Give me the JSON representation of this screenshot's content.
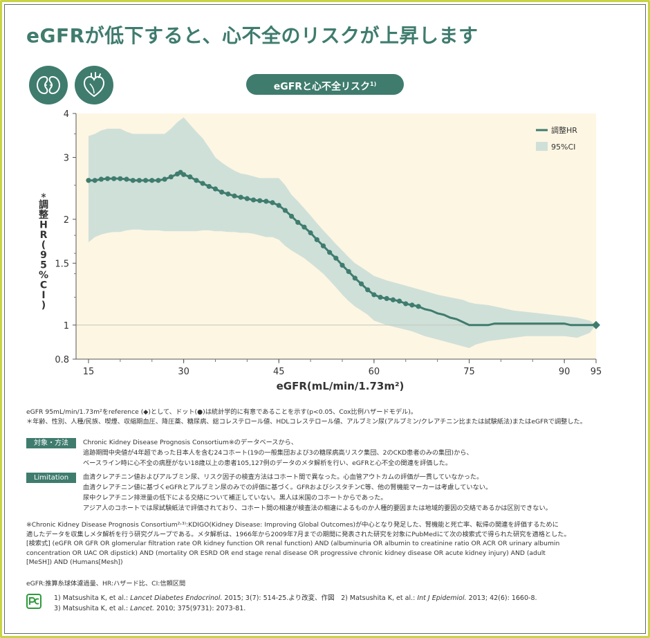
{
  "title": "eGFRが低下すると、心不全のリスクが上昇します",
  "pill": {
    "text": "eGFRと心不全リスク",
    "sup": "1)"
  },
  "icons": [
    "kidney-icon",
    "heart-icon"
  ],
  "colors": {
    "accent": "#3f7c6e",
    "ci_fill": "#cfe0d9",
    "plot_bg": "#fdf6e3",
    "frame": "#c8d445"
  },
  "chart_data": {
    "type": "line",
    "xlabel": "eGFR(mL/min/1.73m²)",
    "ylabel": "＊調整HR(95%CI)",
    "x_ticks": [
      15,
      30,
      45,
      60,
      75,
      90,
      95
    ],
    "y_ticks": [
      0.8,
      1,
      1.5,
      2,
      3,
      4
    ],
    "y_tick_labels": [
      "0.8",
      "1",
      "1.5",
      "2",
      "3",
      "4"
    ],
    "xlim": [
      15,
      95
    ],
    "ylim": [
      0.8,
      4
    ],
    "y_scale": "log",
    "legend": {
      "placement": "top-right",
      "entries": [
        "調整HR",
        "95%CI"
      ]
    },
    "reference": {
      "x": 95,
      "y": 1
    },
    "series": [
      {
        "name": "調整HR",
        "x": [
          15,
          16,
          17,
          18,
          19,
          20,
          21,
          22,
          23,
          24,
          25,
          26,
          27,
          28,
          29,
          29.5,
          30,
          31,
          32,
          33,
          34,
          35,
          36,
          37,
          38,
          39,
          40,
          41,
          42,
          43,
          44,
          45,
          46,
          47,
          48,
          49,
          50,
          51,
          52,
          53,
          54,
          55,
          56,
          57,
          58,
          59,
          60,
          61,
          62,
          63,
          64,
          65,
          66,
          67,
          68,
          69,
          70,
          71,
          72,
          73,
          74,
          75,
          76,
          77,
          78,
          79,
          80,
          81,
          82,
          83,
          84,
          85,
          86,
          87,
          88,
          89,
          90,
          91,
          92,
          93,
          94,
          95
        ],
        "y": [
          2.58,
          2.58,
          2.6,
          2.61,
          2.61,
          2.61,
          2.6,
          2.58,
          2.58,
          2.58,
          2.58,
          2.58,
          2.6,
          2.64,
          2.69,
          2.72,
          2.68,
          2.64,
          2.58,
          2.53,
          2.48,
          2.44,
          2.39,
          2.36,
          2.33,
          2.31,
          2.29,
          2.27,
          2.26,
          2.25,
          2.23,
          2.19,
          2.12,
          2.04,
          1.96,
          1.9,
          1.83,
          1.75,
          1.68,
          1.61,
          1.55,
          1.48,
          1.42,
          1.36,
          1.31,
          1.26,
          1.22,
          1.2,
          1.19,
          1.18,
          1.17,
          1.15,
          1.14,
          1.13,
          1.11,
          1.1,
          1.08,
          1.07,
          1.05,
          1.04,
          1.02,
          1.0,
          1.0,
          1.0,
          1.0,
          1.01,
          1.01,
          1.01,
          1.01,
          1.01,
          1.01,
          1.01,
          1.01,
          1.01,
          1.01,
          1.01,
          1.01,
          1.0,
          1.0,
          1.0,
          1.0,
          1.0
        ],
        "dots": [
          15,
          16,
          17,
          18,
          19,
          20,
          21,
          22,
          23,
          24,
          25,
          26,
          27,
          28,
          29,
          29.5,
          30,
          31,
          32,
          33,
          34,
          35,
          36,
          37,
          38,
          39,
          40,
          41,
          42,
          43,
          44,
          45,
          46,
          47,
          48,
          49,
          50,
          51,
          52,
          53,
          54,
          55,
          56,
          57,
          58,
          59,
          60,
          61,
          62,
          63,
          64,
          65,
          66,
          67
        ]
      },
      {
        "name": "95%CI",
        "x": [
          15,
          16,
          17,
          18,
          19,
          20,
          21,
          22,
          23,
          24,
          25,
          26,
          27,
          28,
          29,
          30,
          31,
          32,
          33,
          34,
          35,
          36,
          37,
          38,
          39,
          40,
          41,
          42,
          43,
          44,
          45,
          46,
          47,
          48,
          49,
          50,
          51,
          52,
          53,
          54,
          55,
          56,
          57,
          58,
          59,
          60,
          62,
          64,
          66,
          68,
          70,
          72,
          74,
          75,
          76,
          78,
          80,
          82,
          84,
          86,
          88,
          90,
          92,
          94,
          95
        ],
        "upper": [
          3.45,
          3.5,
          3.58,
          3.62,
          3.62,
          3.62,
          3.55,
          3.5,
          3.5,
          3.5,
          3.5,
          3.5,
          3.5,
          3.62,
          3.78,
          3.9,
          3.72,
          3.55,
          3.4,
          3.2,
          3.0,
          2.9,
          2.82,
          2.75,
          2.7,
          2.68,
          2.65,
          2.62,
          2.62,
          2.62,
          2.62,
          2.5,
          2.35,
          2.25,
          2.15,
          2.05,
          1.95,
          1.86,
          1.78,
          1.7,
          1.63,
          1.56,
          1.5,
          1.46,
          1.42,
          1.38,
          1.34,
          1.31,
          1.28,
          1.25,
          1.22,
          1.2,
          1.18,
          1.16,
          1.15,
          1.14,
          1.12,
          1.1,
          1.09,
          1.08,
          1.07,
          1.06,
          1.05,
          1.03,
          1.0
        ],
        "lower": [
          1.72,
          1.78,
          1.81,
          1.83,
          1.84,
          1.84,
          1.86,
          1.87,
          1.87,
          1.86,
          1.86,
          1.86,
          1.85,
          1.85,
          1.85,
          1.85,
          1.85,
          1.85,
          1.86,
          1.86,
          1.85,
          1.85,
          1.84,
          1.84,
          1.83,
          1.83,
          1.82,
          1.8,
          1.78,
          1.78,
          1.75,
          1.68,
          1.63,
          1.59,
          1.55,
          1.5,
          1.45,
          1.4,
          1.34,
          1.28,
          1.22,
          1.17,
          1.13,
          1.1,
          1.07,
          1.03,
          1.0,
          0.98,
          0.96,
          0.93,
          0.91,
          0.89,
          0.87,
          0.86,
          0.88,
          0.9,
          0.91,
          0.92,
          0.93,
          0.93,
          0.93,
          0.93,
          0.92,
          0.95,
          1.0
        ]
      }
    ]
  },
  "notes": {
    "line1": "eGFR 95mL/min/1.73m²をreference (◆)として、ドット(●)は統計学的に有意であることを示す(p<0.05、Cox比例ハザードモデル)。",
    "line2": "＊年齢、性別、人種/民族、喫煙、収縮期血圧、降圧薬、糖尿病、総コレステロール値、HDLコレステロール値、アルブミン尿(アルブミン/クレアチニン比または試験紙法)またはeGFRで調整した。"
  },
  "methods": {
    "label": "対象・方法",
    "lines": [
      "Chronic Kidney Disease Prognosis Consortium※のデータベースから、",
      "追跡期間中央値が4年超であった日本人を含む24コホート(19の一般集団および3の糖尿病高リスク集団、2のCKD患者のみの集団)から、",
      "ベースライン時に心不全の病歴がない18歳以上の患者105,127例のデータのメタ解析を行い、eGFRと心不全の関連を評価した。"
    ]
  },
  "limitation": {
    "label": "Limitation",
    "lines": [
      "血清クレアチニン値およびアルブミン尿、リスク因子の検査方法はコホート間で異なった。心血管アウトカムの評価が一貫していなかった。",
      "血清クレアチニン値に基づくeGFRとアルブミン尿のみでの評価に基づく。GFRおよびシスタチンC等、他の腎機能マーカーは考慮していない。",
      "尿中クレアチニン排泄量の低下による交絡について補正していない。黒人は米国のコホートからであった。",
      "アジア人のコホートでは尿試験紙法で評価されており、コホート間の相違が検査法の相違によるものか人種的要因または地域的要因の交絡であるかは区別できない。"
    ]
  },
  "consortium": {
    "lines": [
      "※Chronic Kidney Disease Prognosis Consortium²˒³⁾:KDIGO(Kidney Disease: Improving Global Outcomes)が中心となり発足した、腎機能と死亡率、転帰の関連を評価するために",
      "適したデータを収集しメタ解析を行う研究グループである。メタ解析は、1966年から2009年7月までの期間に発表された研究を対象にPubMedにて次の検索式で得られた研究を適格とした。",
      "[検索式] (eGFR OR GFR OR glomerular filtration rate OR kidney function OR renal function) AND (albuminuria OR albumin to creatinine ratio OR ACR OR urinary albumin",
      "concentration OR UAC OR dipstick) AND (mortality OR ESRD OR end stage renal disease OR progressive chronic kidney disease OR acute kidney injury) AND (adult",
      "[MeSH]) AND (Humans[Mesh])"
    ]
  },
  "abbreviations": "eGFR:推算糸球体濾過量、HR:ハザード比、CI:信頼区間",
  "references": {
    "line1_a": "1) Matsushita K, et al.: ",
    "line1_b": "Lancet Diabetes Endocrinol.",
    "line1_c": " 2015; 3(7): 514-25.より改変、作図　2) Matsushita K, et al.: ",
    "line1_d": "Int J Epidemiol.",
    "line1_e": " 2013; 42(6): 1660-8.",
    "line2_a": "3) Matsushita K, et al.: ",
    "line2_b": "Lancet.",
    "line2_c": " 2010; 375(9731): 2073-81."
  }
}
